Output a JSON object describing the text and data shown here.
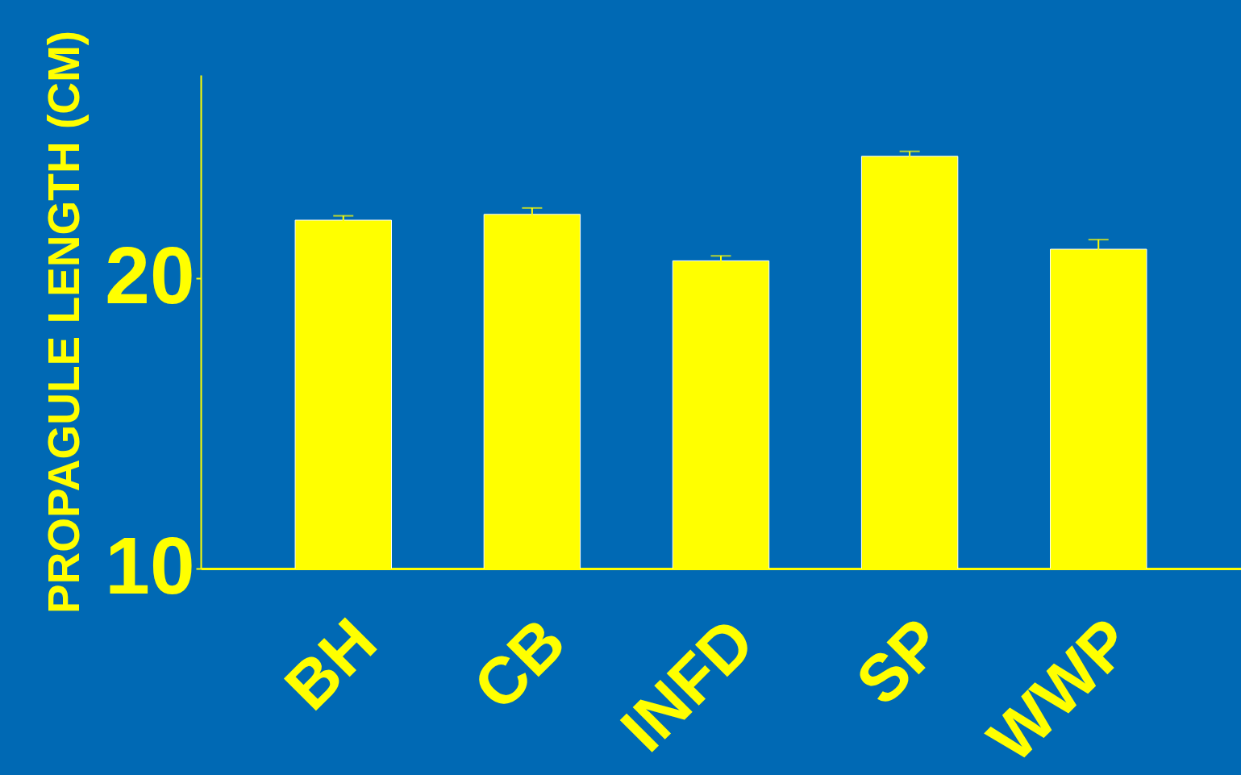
{
  "chart_data": {
    "type": "bar",
    "ylabel": "PROPAGULE LENGTH (CM)",
    "categories": [
      "BH",
      "CB",
      "INFD",
      "SP",
      "WWP"
    ],
    "values": [
      22.0,
      22.2,
      20.6,
      24.2,
      21.0
    ],
    "errors": [
      0.15,
      0.22,
      0.17,
      0.17,
      0.33
    ],
    "color": "#ffff00",
    "ylim": [
      10,
      27
    ],
    "yticks": [
      10,
      20
    ],
    "grid": false
  }
}
